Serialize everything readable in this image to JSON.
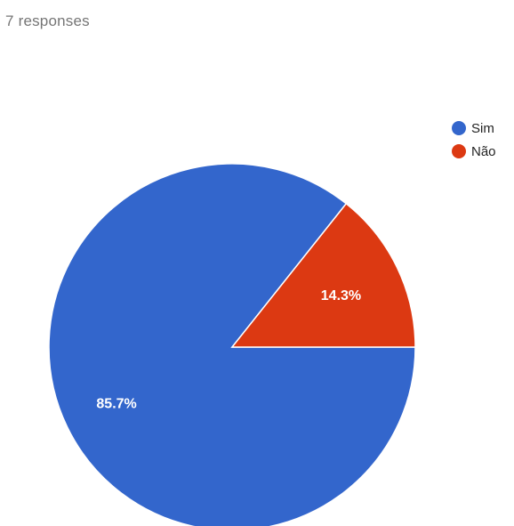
{
  "header": {
    "responses_text": "7 responses"
  },
  "chart_data": {
    "type": "pie",
    "slices": [
      {
        "name": "Sim",
        "value": 85.7,
        "label": "85.7%",
        "color": "#3366cc"
      },
      {
        "name": "Não",
        "value": 14.3,
        "label": "14.3%",
        "color": "#dc3912"
      }
    ],
    "legend_position": "top-right",
    "start": "3 o'clock, counter-clockwise"
  }
}
